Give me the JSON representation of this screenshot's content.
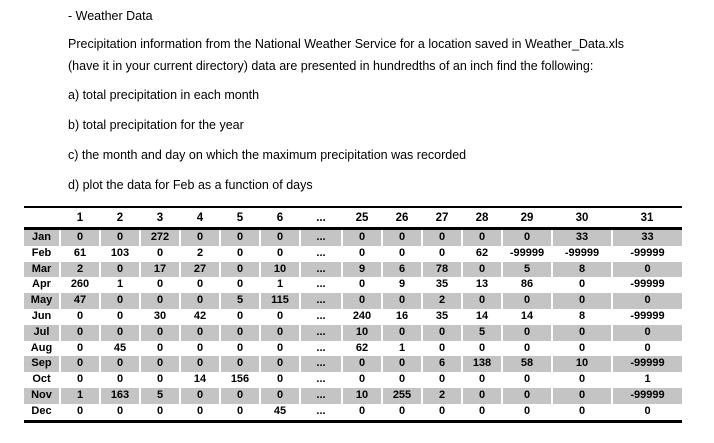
{
  "document": {
    "title": "- Weather Data",
    "intro_lines": [
      "Precipitation information from the National Weather Service for a location saved in Weather_Data.xls",
      "(have it in your current directory) data are presented in hundredths of an inch find the following:"
    ],
    "items": [
      "a) total precipitation in each month",
      "b) total precipitation for the year",
      "c) the month and day on which the maximum precipitation was recorded",
      "d) plot the data for Feb as a function of days"
    ]
  },
  "table": {
    "columns": [
      "",
      "1",
      "2",
      "3",
      "4",
      "5",
      "6",
      "...",
      "25",
      "26",
      "27",
      "28",
      "29",
      "30",
      "31"
    ],
    "rows": [
      {
        "label": "Jan",
        "shaded": true,
        "values": [
          "0",
          "0",
          "272",
          "0",
          "0",
          "0",
          "...",
          "0",
          "0",
          "0",
          "0",
          "0",
          "33",
          "33"
        ]
      },
      {
        "label": "Feb",
        "shaded": false,
        "values": [
          "61",
          "103",
          "0",
          "2",
          "0",
          "0",
          "...",
          "0",
          "0",
          "0",
          "62",
          "-99999",
          "-99999",
          "-99999"
        ]
      },
      {
        "label": "Mar",
        "shaded": true,
        "values": [
          "2",
          "0",
          "17",
          "27",
          "0",
          "10",
          "...",
          "9",
          "6",
          "78",
          "0",
          "5",
          "8",
          "0"
        ]
      },
      {
        "label": "Apr",
        "shaded": false,
        "values": [
          "260",
          "1",
          "0",
          "0",
          "0",
          "1",
          "...",
          "0",
          "9",
          "35",
          "13",
          "86",
          "0",
          "-99999"
        ]
      },
      {
        "label": "May",
        "shaded": true,
        "values": [
          "47",
          "0",
          "0",
          "0",
          "5",
          "115",
          "...",
          "0",
          "0",
          "2",
          "0",
          "0",
          "0",
          "0"
        ]
      },
      {
        "label": "Jun",
        "shaded": false,
        "values": [
          "0",
          "0",
          "30",
          "42",
          "0",
          "0",
          "...",
          "240",
          "16",
          "35",
          "14",
          "14",
          "8",
          "-99999"
        ]
      },
      {
        "label": "Jul",
        "shaded": true,
        "values": [
          "0",
          "0",
          "0",
          "0",
          "0",
          "0",
          "...",
          "10",
          "0",
          "0",
          "5",
          "0",
          "0",
          "0"
        ]
      },
      {
        "label": "Aug",
        "shaded": false,
        "values": [
          "0",
          "45",
          "0",
          "0",
          "0",
          "0",
          "...",
          "62",
          "1",
          "0",
          "0",
          "0",
          "0",
          "0"
        ]
      },
      {
        "label": "Sep",
        "shaded": true,
        "values": [
          "0",
          "0",
          "0",
          "0",
          "0",
          "0",
          "...",
          "0",
          "0",
          "6",
          "138",
          "58",
          "10",
          "-99999"
        ]
      },
      {
        "label": "Oct",
        "shaded": false,
        "values": [
          "0",
          "0",
          "0",
          "14",
          "156",
          "0",
          "...",
          "0",
          "0",
          "0",
          "0",
          "0",
          "0",
          "1"
        ]
      },
      {
        "label": "Nov",
        "shaded": true,
        "values": [
          "1",
          "163",
          "5",
          "0",
          "0",
          "0",
          "...",
          "10",
          "255",
          "2",
          "0",
          "0",
          "0",
          "-99999"
        ]
      },
      {
        "label": "Dec",
        "shaded": false,
        "values": [
          "0",
          "0",
          "0",
          "0",
          "0",
          "45",
          "...",
          "0",
          "0",
          "0",
          "0",
          "0",
          "0",
          "0"
        ]
      }
    ]
  },
  "colors": {
    "row_shade": "#c4c4c4",
    "text": "#000000",
    "border": "#000000",
    "background": "#ffffff"
  }
}
